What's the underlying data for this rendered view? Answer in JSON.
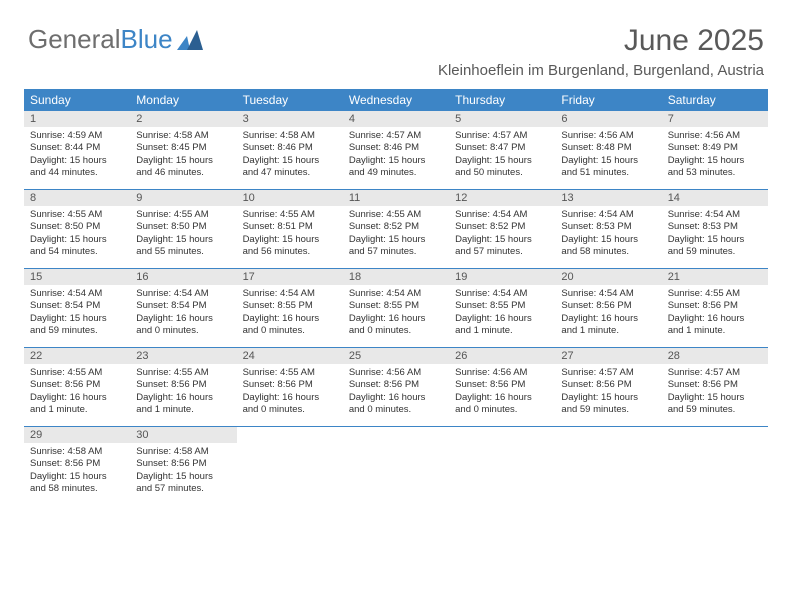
{
  "logo": {
    "text1": "General",
    "text2": "Blue"
  },
  "title": "June 2025",
  "location": "Kleinhoeflein im Burgenland, Burgenland, Austria",
  "colors": {
    "header_bg": "#3d85c6",
    "header_text": "#ffffff",
    "daynum_bg": "#e8e8e8",
    "text": "#333333",
    "title_color": "#595959"
  },
  "weekdays": [
    "Sunday",
    "Monday",
    "Tuesday",
    "Wednesday",
    "Thursday",
    "Friday",
    "Saturday"
  ],
  "weeks": [
    [
      {
        "n": "1",
        "sr": "4:59 AM",
        "ss": "8:44 PM",
        "dl": "15 hours and 44 minutes."
      },
      {
        "n": "2",
        "sr": "4:58 AM",
        "ss": "8:45 PM",
        "dl": "15 hours and 46 minutes."
      },
      {
        "n": "3",
        "sr": "4:58 AM",
        "ss": "8:46 PM",
        "dl": "15 hours and 47 minutes."
      },
      {
        "n": "4",
        "sr": "4:57 AM",
        "ss": "8:46 PM",
        "dl": "15 hours and 49 minutes."
      },
      {
        "n": "5",
        "sr": "4:57 AM",
        "ss": "8:47 PM",
        "dl": "15 hours and 50 minutes."
      },
      {
        "n": "6",
        "sr": "4:56 AM",
        "ss": "8:48 PM",
        "dl": "15 hours and 51 minutes."
      },
      {
        "n": "7",
        "sr": "4:56 AM",
        "ss": "8:49 PM",
        "dl": "15 hours and 53 minutes."
      }
    ],
    [
      {
        "n": "8",
        "sr": "4:55 AM",
        "ss": "8:50 PM",
        "dl": "15 hours and 54 minutes."
      },
      {
        "n": "9",
        "sr": "4:55 AM",
        "ss": "8:50 PM",
        "dl": "15 hours and 55 minutes."
      },
      {
        "n": "10",
        "sr": "4:55 AM",
        "ss": "8:51 PM",
        "dl": "15 hours and 56 minutes."
      },
      {
        "n": "11",
        "sr": "4:55 AM",
        "ss": "8:52 PM",
        "dl": "15 hours and 57 minutes."
      },
      {
        "n": "12",
        "sr": "4:54 AM",
        "ss": "8:52 PM",
        "dl": "15 hours and 57 minutes."
      },
      {
        "n": "13",
        "sr": "4:54 AM",
        "ss": "8:53 PM",
        "dl": "15 hours and 58 minutes."
      },
      {
        "n": "14",
        "sr": "4:54 AM",
        "ss": "8:53 PM",
        "dl": "15 hours and 59 minutes."
      }
    ],
    [
      {
        "n": "15",
        "sr": "4:54 AM",
        "ss": "8:54 PM",
        "dl": "15 hours and 59 minutes."
      },
      {
        "n": "16",
        "sr": "4:54 AM",
        "ss": "8:54 PM",
        "dl": "16 hours and 0 minutes."
      },
      {
        "n": "17",
        "sr": "4:54 AM",
        "ss": "8:55 PM",
        "dl": "16 hours and 0 minutes."
      },
      {
        "n": "18",
        "sr": "4:54 AM",
        "ss": "8:55 PM",
        "dl": "16 hours and 0 minutes."
      },
      {
        "n": "19",
        "sr": "4:54 AM",
        "ss": "8:55 PM",
        "dl": "16 hours and 1 minute."
      },
      {
        "n": "20",
        "sr": "4:54 AM",
        "ss": "8:56 PM",
        "dl": "16 hours and 1 minute."
      },
      {
        "n": "21",
        "sr": "4:55 AM",
        "ss": "8:56 PM",
        "dl": "16 hours and 1 minute."
      }
    ],
    [
      {
        "n": "22",
        "sr": "4:55 AM",
        "ss": "8:56 PM",
        "dl": "16 hours and 1 minute."
      },
      {
        "n": "23",
        "sr": "4:55 AM",
        "ss": "8:56 PM",
        "dl": "16 hours and 1 minute."
      },
      {
        "n": "24",
        "sr": "4:55 AM",
        "ss": "8:56 PM",
        "dl": "16 hours and 0 minutes."
      },
      {
        "n": "25",
        "sr": "4:56 AM",
        "ss": "8:56 PM",
        "dl": "16 hours and 0 minutes."
      },
      {
        "n": "26",
        "sr": "4:56 AM",
        "ss": "8:56 PM",
        "dl": "16 hours and 0 minutes."
      },
      {
        "n": "27",
        "sr": "4:57 AM",
        "ss": "8:56 PM",
        "dl": "15 hours and 59 minutes."
      },
      {
        "n": "28",
        "sr": "4:57 AM",
        "ss": "8:56 PM",
        "dl": "15 hours and 59 minutes."
      }
    ],
    [
      {
        "n": "29",
        "sr": "4:58 AM",
        "ss": "8:56 PM",
        "dl": "15 hours and 58 minutes."
      },
      {
        "n": "30",
        "sr": "4:58 AM",
        "ss": "8:56 PM",
        "dl": "15 hours and 57 minutes."
      },
      null,
      null,
      null,
      null,
      null
    ]
  ],
  "labels": {
    "sunrise": "Sunrise:",
    "sunset": "Sunset:",
    "daylight": "Daylight:"
  }
}
